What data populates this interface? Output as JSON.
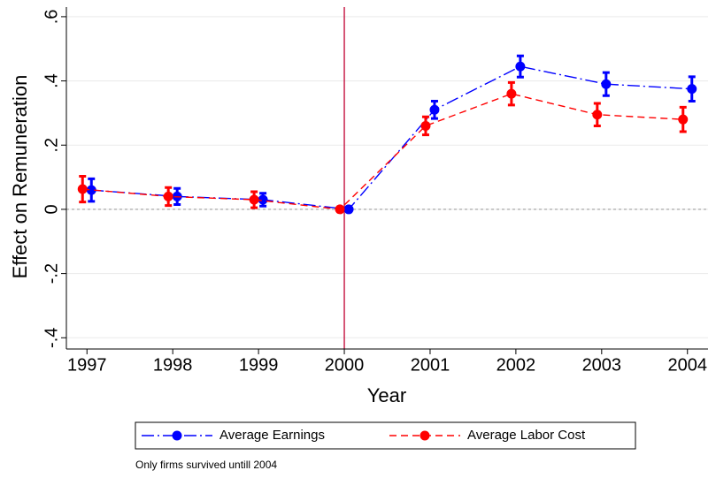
{
  "chart_data": {
    "type": "line",
    "x": [
      1997,
      1998,
      1999,
      2000,
      2001,
      2002,
      2003,
      2004
    ],
    "series": [
      {
        "name": "Average Earnings",
        "color": "#0000ff",
        "dash": "dashdot",
        "values": [
          0.06,
          0.04,
          0.03,
          0,
          0.31,
          0.445,
          0.39,
          0.375
        ],
        "errors": [
          0.035,
          0.025,
          0.02,
          0,
          0.027,
          0.033,
          0.036,
          0.038
        ]
      },
      {
        "name": "Average Labor Cost",
        "color": "#ff0000",
        "dash": "dash",
        "values": [
          0.063,
          0.04,
          0.03,
          0,
          0.26,
          0.36,
          0.295,
          0.28
        ],
        "errors": [
          0.04,
          0.028,
          0.025,
          0,
          0.028,
          0.035,
          0.035,
          0.038
        ]
      }
    ],
    "xlabel": "Year",
    "ylabel": "Effect on Remuneration",
    "xlim": [
      1996.76,
      2004.24
    ],
    "ylim": [
      -0.435,
      0.63
    ],
    "xticks": [
      1997,
      1998,
      1999,
      2000,
      2001,
      2002,
      2003,
      2004
    ],
    "yticks": [
      {
        "value": -0.4,
        "label": "-.4"
      },
      {
        "value": -0.2,
        "label": "-.2"
      },
      0,
      {
        "value": 0.2,
        "label": ".2"
      },
      {
        "value": 0.4,
        "label": ".4"
      },
      {
        "value": 0.6,
        "label": ".6"
      }
    ],
    "grid": true,
    "xline": 2000,
    "xline_color": "#c00030",
    "yline": 0,
    "legend": "bottom",
    "note": "Only firms survived untill 2004"
  }
}
